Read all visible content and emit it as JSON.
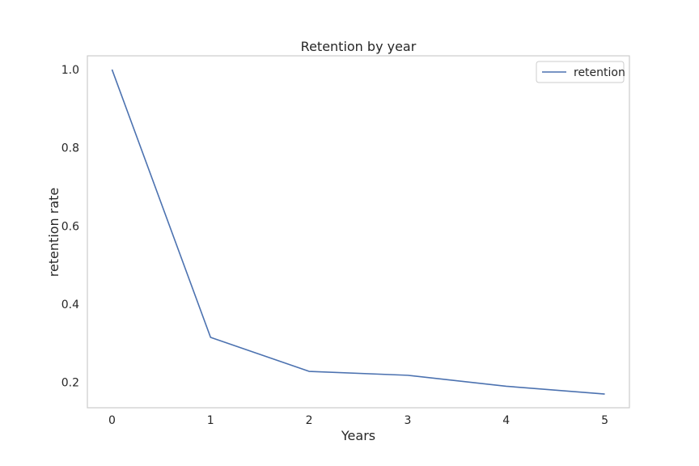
{
  "chart_data": {
    "type": "line",
    "title": "Retention by year",
    "xlabel": "Years",
    "ylabel": "retention rate",
    "x": [
      0,
      1,
      2,
      3,
      4,
      5
    ],
    "xticks": [
      0,
      1,
      2,
      3,
      4,
      5
    ],
    "yticks": [
      0.2,
      0.4,
      0.6,
      0.8,
      1.0
    ],
    "xlim": [
      -0.25,
      5.25
    ],
    "ylim": [
      0.135,
      1.035
    ],
    "grid": false,
    "legend_position": "top-right",
    "series": [
      {
        "name": "retention",
        "color": "#4c72b0",
        "values": [
          1.0,
          0.315,
          0.228,
          0.218,
          0.19,
          0.17
        ]
      }
    ]
  }
}
